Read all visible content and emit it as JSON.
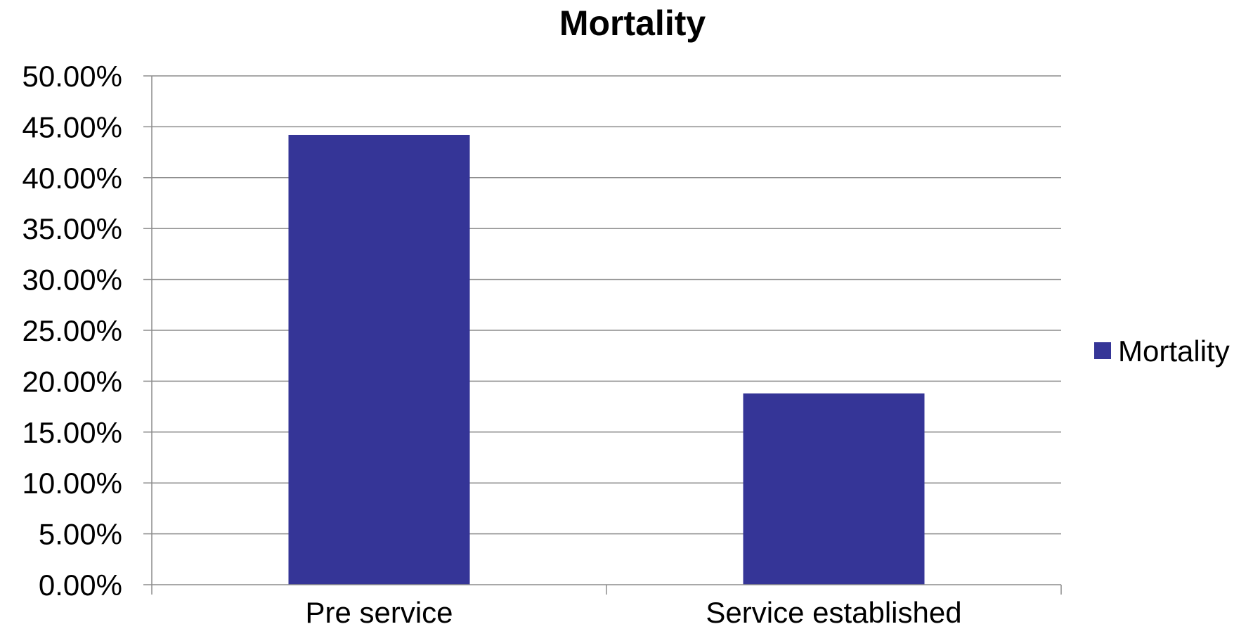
{
  "chart_data": {
    "type": "bar",
    "title": "Mortality",
    "xlabel": "",
    "ylabel": "",
    "categories": [
      "Pre service",
      "Service established"
    ],
    "series": [
      {
        "name": "Mortality",
        "values": [
          0.442,
          0.188
        ],
        "color": "#353597"
      }
    ],
    "ylim": [
      0,
      0.5
    ],
    "y_ticks": [
      0,
      0.05,
      0.1,
      0.15,
      0.2,
      0.25,
      0.3,
      0.35,
      0.4,
      0.45,
      0.5
    ],
    "y_tick_labels": [
      "0.00%",
      "5.00%",
      "10.00%",
      "15.00%",
      "20.00%",
      "25.00%",
      "30.00%",
      "35.00%",
      "40.00%",
      "45.00%",
      "50.00%"
    ],
    "grid": true,
    "legend_position": "right"
  }
}
